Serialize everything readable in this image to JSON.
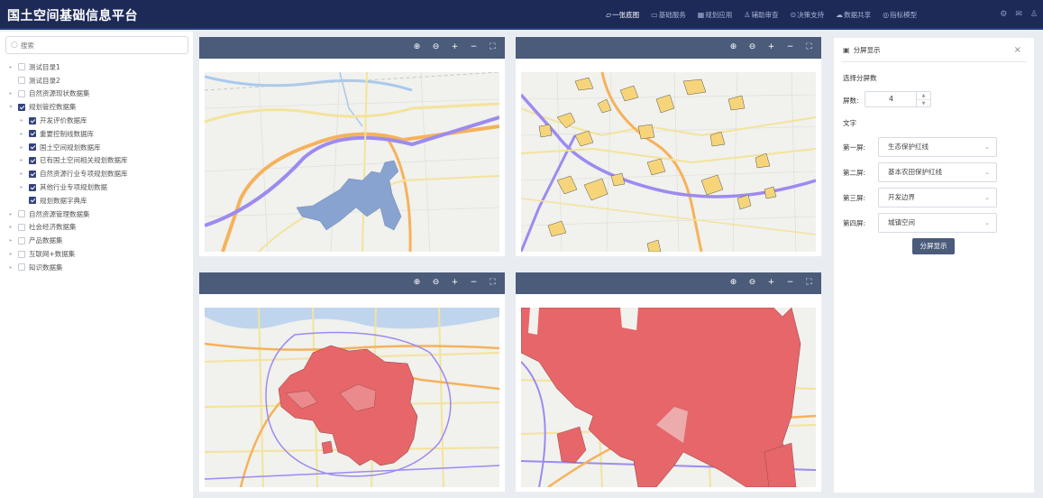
{
  "app_title": "国土空间基础信息平台",
  "nav": [
    {
      "label": "一张底图",
      "icon": "map-icon",
      "glyph": "▱",
      "active": true
    },
    {
      "label": "基础服务",
      "icon": "monitor-icon",
      "glyph": "▭",
      "active": false
    },
    {
      "label": "规划应用",
      "icon": "grid-icon",
      "glyph": "▦",
      "active": false
    },
    {
      "label": "辅助审查",
      "icon": "user-icon",
      "glyph": "♙",
      "active": false
    },
    {
      "label": "决策支持",
      "icon": "pin-icon",
      "glyph": "⊙",
      "active": false
    },
    {
      "label": "数据共享",
      "icon": "cloud-icon",
      "glyph": "☁",
      "active": false
    },
    {
      "label": "指标模型",
      "icon": "settings-icon",
      "glyph": "◎",
      "active": false
    }
  ],
  "sidebar": {
    "search_placeholder": "搜索",
    "tree": [
      {
        "label": "测试目录1",
        "level": 0,
        "checked": false,
        "arrow": "▸"
      },
      {
        "label": "测试目录2",
        "level": 0,
        "checked": false,
        "arrow": ""
      },
      {
        "label": "自然资源现状数据集",
        "level": 0,
        "checked": false,
        "arrow": "▸"
      },
      {
        "label": "规划管控数据集",
        "level": 0,
        "checked": true,
        "arrow": "▾"
      },
      {
        "label": "开发评价数据库",
        "level": 1,
        "checked": true,
        "arrow": "▸"
      },
      {
        "label": "重要控制线数据库",
        "level": 1,
        "checked": true,
        "arrow": "▸"
      },
      {
        "label": "国土空间规划数据库",
        "level": 1,
        "checked": true,
        "arrow": "▸"
      },
      {
        "label": "已有国土空间相关规划数据库",
        "level": 1,
        "checked": true,
        "arrow": "▸"
      },
      {
        "label": "自然资源行业专项规划数据库",
        "level": 1,
        "checked": true,
        "arrow": "▸"
      },
      {
        "label": "其他行业专项规划数据",
        "level": 1,
        "checked": true,
        "arrow": "▸"
      },
      {
        "label": "规划数据字典库",
        "level": 1,
        "checked": true,
        "arrow": ""
      },
      {
        "label": "自然资源管理数据集",
        "level": 0,
        "checked": false,
        "arrow": "▸"
      },
      {
        "label": "社会经济数据集",
        "level": 0,
        "checked": false,
        "arrow": "▸"
      },
      {
        "label": "产品数据集",
        "level": 0,
        "checked": false,
        "arrow": "▸"
      },
      {
        "label": "互联网+数据集",
        "level": 0,
        "checked": false,
        "arrow": "▸"
      },
      {
        "label": "知识数据集",
        "level": 0,
        "checked": false,
        "arrow": "▸"
      }
    ]
  },
  "toolbar": {
    "zoom_in": "⊕",
    "zoom_out": "⊖",
    "plus": "+",
    "minus": "−",
    "fullscreen": "⛶"
  },
  "right_panel": {
    "title": "分屏显示",
    "close": "×",
    "choose_label": "选择分屏数",
    "count_label": "屏数:",
    "count_value": "4",
    "text_label": "文字",
    "screens": [
      {
        "label": "第一屏:",
        "value": "生态保护红线"
      },
      {
        "label": "第二屏:",
        "value": "基本农田保护红线"
      },
      {
        "label": "第三屏:",
        "value": "开发边界"
      },
      {
        "label": "第四屏:",
        "value": "城镇空间"
      }
    ],
    "button": "分屏显示"
  },
  "colors": {
    "header_bg": "#1d2a57",
    "toolbar_bg": "#4b5b7a",
    "map_base": "#f1f1ed",
    "road_major": "#f5b25c",
    "road_minor": "#f3e39c",
    "road_purple": "#9d8af0",
    "water": "#a9c9ee",
    "blue_polygon": "#89a3d0",
    "yellow_polygon": "#f6d57a",
    "red_polygon": "#e6666a"
  }
}
